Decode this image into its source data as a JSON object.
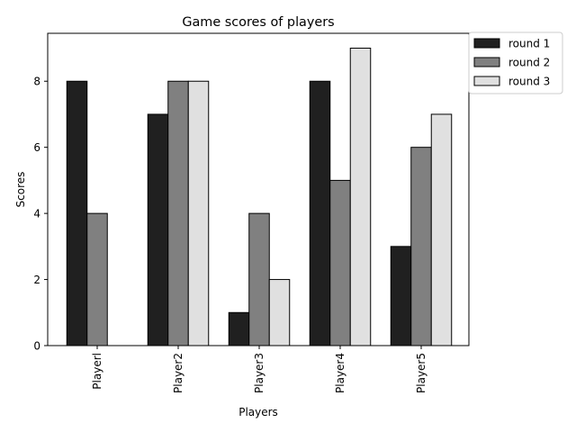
{
  "chart_data": {
    "type": "bar",
    "title": "Game scores of players",
    "xlabel": "Players",
    "ylabel": "Scores",
    "categories": [
      "Playerl",
      "Player2",
      "Player3",
      "Player4",
      "Player5"
    ],
    "series": [
      {
        "name": "round 1",
        "values": [
          8,
          7,
          1,
          8,
          3
        ],
        "color": "#202020"
      },
      {
        "name": "round 2",
        "values": [
          4,
          8,
          4,
          5,
          6
        ],
        "color": "#808080"
      },
      {
        "name": "round 3",
        "values": [
          0,
          8,
          2,
          9,
          7
        ],
        "color": "#e0e0e0"
      }
    ],
    "ylim": [
      0,
      9.45
    ],
    "yticks": [
      0,
      2,
      4,
      6,
      8
    ],
    "grid": false,
    "legend_placement": "outside-top-right"
  }
}
